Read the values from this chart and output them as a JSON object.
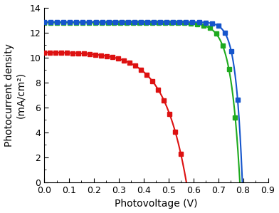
{
  "title": "",
  "xlabel": "Photovoltage (V)",
  "ylabel": "Photocurrent density\n(mA/cm²)",
  "xlim": [
    0.0,
    0.9
  ],
  "ylim": [
    0,
    14
  ],
  "xticks": [
    0.0,
    0.1,
    0.2,
    0.3,
    0.4,
    0.5,
    0.6,
    0.7,
    0.8,
    0.9
  ],
  "yticks": [
    0,
    2,
    4,
    6,
    8,
    10,
    12,
    14
  ],
  "blue_Jsc": 12.85,
  "blue_Voc": 0.797,
  "blue_n": 38,
  "green_Jsc": 12.78,
  "green_Voc": 0.787,
  "green_n": 28,
  "red_Jsc": 10.42,
  "red_Voc": 0.572,
  "red_n": 11,
  "blue_color": "#1555cc",
  "green_color": "#1eaa1e",
  "red_color": "#dd1111",
  "marker": "s",
  "markersize": 4.0,
  "linewidth": 1.5,
  "figsize": [
    3.92,
    2.99
  ],
  "dpi": 100,
  "num_markers_blue": 30,
  "num_markers_green": 30,
  "num_markers_red": 25
}
